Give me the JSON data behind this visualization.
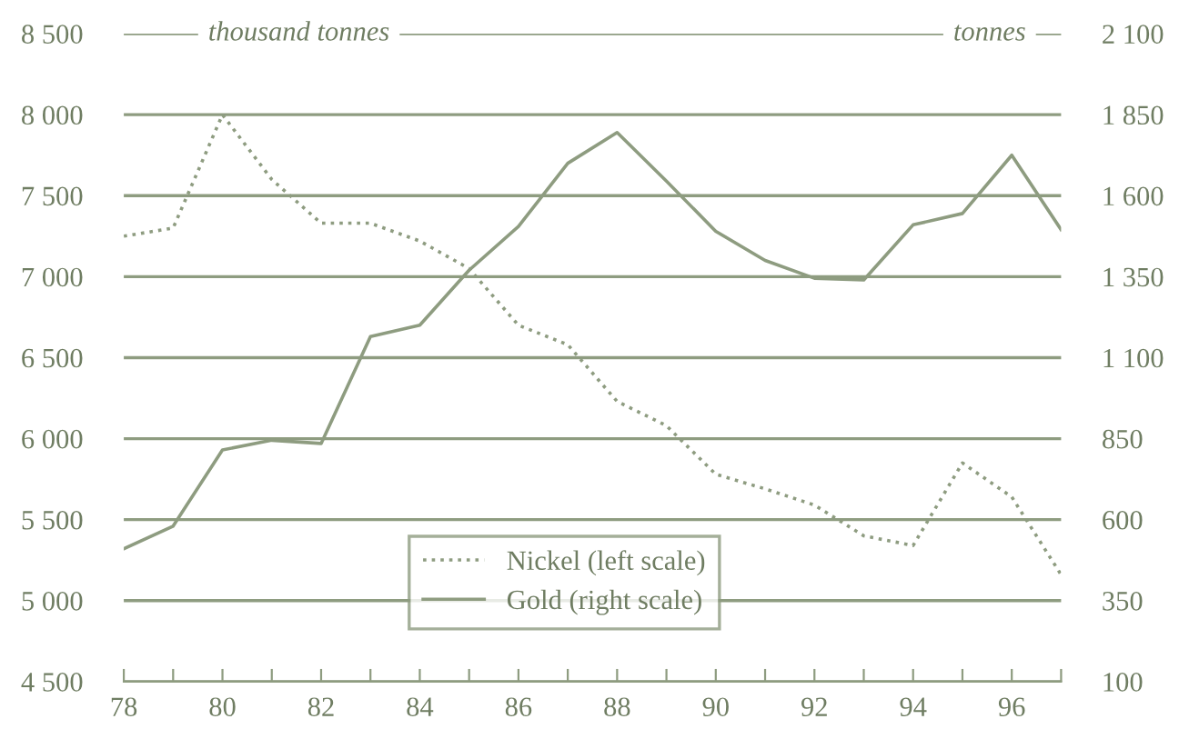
{
  "chart_data": {
    "type": "line",
    "ylabel": "thousand tonnes",
    "y2label": "tonnes",
    "x": [
      78,
      79,
      80,
      81,
      82,
      83,
      84,
      85,
      86,
      87,
      88,
      89,
      90,
      91,
      92,
      93,
      94,
      95,
      96,
      97
    ],
    "series": [
      {
        "name": "Nickel (left scale)",
        "color": "#8e9c80",
        "line_style": "dotted",
        "values": [
          7250,
          7300,
          8000,
          7600,
          7330,
          7330,
          7220,
          7050,
          6700,
          6580,
          6230,
          6080,
          5780,
          5690,
          5590,
          5400,
          5340,
          5850,
          5640,
          5160
        ]
      },
      {
        "name": "Gold (right scale)",
        "color": "#8e9c80",
        "line_style": "solid",
        "axis": "y2",
        "values": [
          510,
          580,
          815,
          845,
          835,
          1165,
          1200,
          1370,
          1505,
          1700,
          1795,
          1645,
          1490,
          1400,
          1345,
          1340,
          1510,
          1545,
          1725,
          1495
        ]
      }
    ],
    "xlim": [
      78,
      97
    ],
    "xticks": [
      78,
      {
        "value": 79,
        "label": null
      },
      80,
      {
        "value": 81,
        "label": null
      },
      82,
      {
        "value": 83,
        "label": null
      },
      84,
      {
        "value": 85,
        "label": null
      },
      86,
      {
        "value": 87,
        "label": null
      },
      88,
      {
        "value": 89,
        "label": null
      },
      90,
      {
        "value": 91,
        "label": null
      },
      92,
      {
        "value": 93,
        "label": null
      },
      94,
      {
        "value": 95,
        "label": null
      },
      96,
      {
        "value": 97,
        "label": null
      }
    ],
    "ylim": [
      4500,
      8500
    ],
    "yticks": [
      {
        "value": 4500,
        "label": "4 500"
      },
      {
        "value": 5000,
        "label": "5 000"
      },
      {
        "value": 5500,
        "label": "5 500"
      },
      {
        "value": 6000,
        "label": "6 000"
      },
      {
        "value": 6500,
        "label": "6 500"
      },
      {
        "value": 7000,
        "label": "7 000"
      },
      {
        "value": 7500,
        "label": "7 500"
      },
      {
        "value": 8000,
        "label": "8 000"
      },
      {
        "value": 8500,
        "label": "8 500"
      }
    ],
    "y2lim": [
      100,
      2100
    ],
    "y2ticks": [
      100,
      350,
      600,
      850,
      {
        "value": 1100,
        "label": "1 100"
      },
      {
        "value": 1350,
        "label": "1 350"
      },
      {
        "value": 1600,
        "label": "1 600"
      },
      {
        "value": 1850,
        "label": "1 850"
      },
      {
        "value": 2100,
        "label": "2 100"
      }
    ],
    "grid": "y",
    "legend": "bottom",
    "marker": "none"
  }
}
